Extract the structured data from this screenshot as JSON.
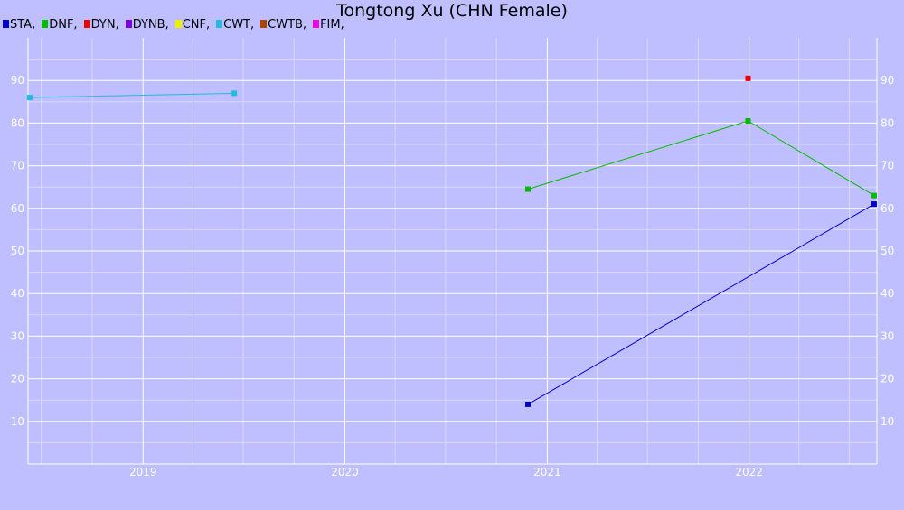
{
  "chart_data": {
    "type": "line",
    "title": "Tongtong Xu (CHN Female)",
    "xlabel": "",
    "ylabel": "",
    "x_ticks": [
      "2019",
      "2020",
      "2021",
      "2022"
    ],
    "y_ticks": [
      10,
      20,
      30,
      40,
      50,
      60,
      70,
      80,
      90
    ],
    "ylim": [
      0,
      100
    ],
    "xlim": [
      "2018-06-07",
      "2022-08-20"
    ],
    "grid": true,
    "legend_position": "top-left",
    "legend": [
      {
        "label": "STA,",
        "color": "#0000cc"
      },
      {
        "label": "DNF,",
        "color": "#00bb00"
      },
      {
        "label": "DYN,",
        "color": "#ee0000"
      },
      {
        "label": "DYNB,",
        "color": "#7a00dd"
      },
      {
        "label": "CNF,",
        "color": "#eeee00"
      },
      {
        "label": "CWT,",
        "color": "#22bbdd"
      },
      {
        "label": "CWTB,",
        "color": "#aa4400"
      },
      {
        "label": "FIM,",
        "color": "#ee00ee"
      }
    ],
    "series": [
      {
        "name": "STA",
        "color": "#0000cc",
        "points": [
          {
            "x": "2020-11-27",
            "y": 14
          },
          {
            "x": "2022-08-15",
            "y": 61
          }
        ]
      },
      {
        "name": "DNF",
        "color": "#00bb00",
        "points": [
          {
            "x": "2020-11-27",
            "y": 64.5
          },
          {
            "x": "2021-12-30",
            "y": 80.5
          },
          {
            "x": "2022-08-15",
            "y": 63
          }
        ]
      },
      {
        "name": "DYN",
        "color": "#ee0000",
        "points": [
          {
            "x": "2021-12-30",
            "y": 90.5
          }
        ]
      },
      {
        "name": "CWT",
        "color": "#22bbdd",
        "points": [
          {
            "x": "2018-06-10",
            "y": 86
          },
          {
            "x": "2019-06-15",
            "y": 87
          }
        ]
      }
    ]
  }
}
